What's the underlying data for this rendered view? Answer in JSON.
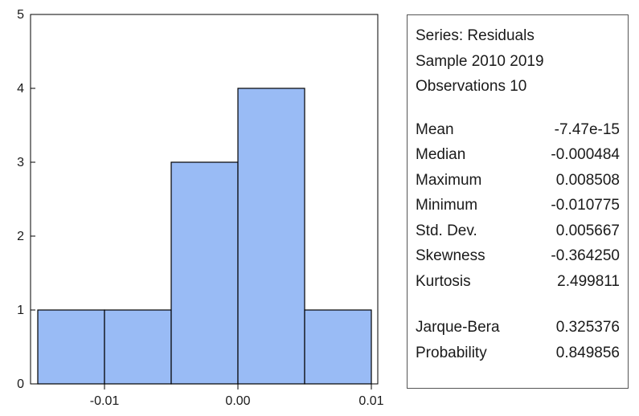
{
  "chart_data": {
    "type": "bar",
    "subtype": "histogram",
    "bins": [
      {
        "from": -0.015,
        "to": -0.01,
        "count": 1
      },
      {
        "from": -0.01,
        "to": -0.005,
        "count": 1
      },
      {
        "from": -0.005,
        "to": 0.0,
        "count": 3
      },
      {
        "from": 0.0,
        "to": 0.005,
        "count": 4
      },
      {
        "from": 0.005,
        "to": 0.01,
        "count": 1
      }
    ],
    "xlim": [
      -0.015,
      0.01
    ],
    "ylim": [
      0,
      5
    ],
    "xticks": [
      -0.01,
      0.0,
      0.01
    ],
    "xtick_labels": [
      "-0.01",
      "0.00",
      "0.01"
    ],
    "yticks": [
      0,
      1,
      2,
      3,
      4,
      5
    ],
    "ytick_labels": [
      "0",
      "1",
      "2",
      "3",
      "4",
      "5"
    ],
    "grid": false,
    "legend": "none",
    "colors": {
      "bar_fill": "#99bbf5",
      "bar_stroke": "#000000"
    }
  },
  "stats": {
    "series": "Series: Residuals",
    "sample": "Sample 2010 2019",
    "observations": "Observations 10",
    "group1": [
      {
        "label": "Mean",
        "value": "-7.47e-15"
      },
      {
        "label": "Median",
        "value": "-0.000484"
      },
      {
        "label": "Maximum",
        "value": "0.008508"
      },
      {
        "label": "Minimum",
        "value": "-0.010775"
      },
      {
        "label": "Std. Dev.",
        "value": "0.005667"
      },
      {
        "label": "Skewness",
        "value": "-0.364250"
      },
      {
        "label": "Kurtosis",
        "value": "2.499811"
      }
    ],
    "group2": [
      {
        "label": "Jarque-Bera",
        "value": "0.325376"
      },
      {
        "label": "Probability",
        "value": "0.849856"
      }
    ]
  }
}
